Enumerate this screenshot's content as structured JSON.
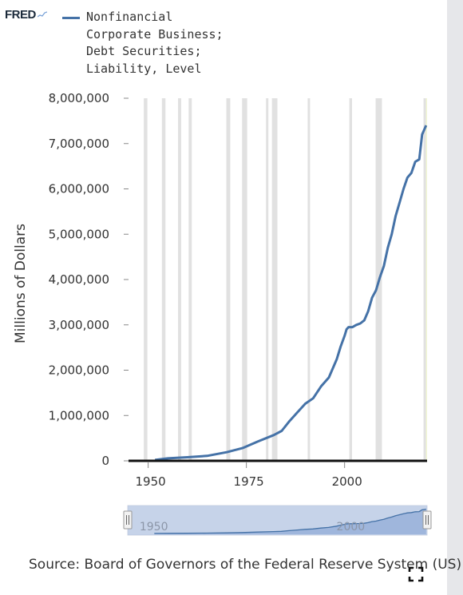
{
  "brand": {
    "name": "FRED"
  },
  "legend": {
    "label": "Nonfinancial\nCorporate Business;\nDebt Securities;\nLiability, Level"
  },
  "source_text": "Source: Board of Governors of the Federal Reserve System (US)",
  "colors": {
    "series": "#4572a7",
    "recession": "#e1e1e1",
    "navigator_fill": "#b7c7e3",
    "navigator_line": "#4572a7",
    "forecast_band": "#f2f7d4"
  },
  "icons": {
    "logo_spark": "sparkline-icon",
    "fullscreen": "fullscreen-icon"
  },
  "navigator": {
    "tick_labels": [
      "1950",
      "2000"
    ]
  },
  "chart_data": {
    "type": "line",
    "title": "",
    "ylabel": "Millions of Dollars",
    "xlabel": "",
    "xlim": [
      1945,
      2021
    ],
    "ylim": [
      0,
      8000000
    ],
    "x_ticks": [
      1950,
      1975,
      2000
    ],
    "y_ticks": [
      0,
      1000000,
      2000000,
      3000000,
      4000000,
      5000000,
      6000000,
      7000000,
      8000000
    ],
    "y_tick_labels": [
      "0",
      "1,000,000",
      "2,000,000",
      "3,000,000",
      "4,000,000",
      "5,000,000",
      "6,000,000",
      "7,000,000",
      "8,000,000"
    ],
    "x_tick_labels": [
      "1950",
      "1975",
      "2000"
    ],
    "grid": false,
    "legend_position": "top",
    "recessions": [
      [
        1948.9,
        1949.8
      ],
      [
        1953.5,
        1954.4
      ],
      [
        1957.6,
        1958.4
      ],
      [
        1960.3,
        1961.1
      ],
      [
        1969.9,
        1970.9
      ],
      [
        1973.9,
        1975.2
      ],
      [
        1980.0,
        1980.6
      ],
      [
        1981.5,
        1982.9
      ],
      [
        1990.6,
        1991.2
      ],
      [
        2001.2,
        2001.9
      ],
      [
        2007.9,
        2009.5
      ],
      [
        2020.1,
        2020.4
      ]
    ],
    "series": [
      {
        "name": "Nonfinancial Corporate Business; Debt Securities; Liability, Level",
        "x": [
          1951.75,
          1955,
          1960,
          1965,
          1970,
          1974,
          1978,
          1982,
          1984,
          1986,
          1988,
          1990,
          1992,
          1994,
          1996,
          1998,
          1999,
          2000,
          2000.5,
          2001,
          2002,
          2003,
          2004,
          2005,
          2006,
          2007,
          2008,
          2009,
          2010,
          2011,
          2012,
          2013,
          2014,
          2015,
          2016,
          2017,
          2018,
          2019,
          2019.75,
          2020.25,
          2020.75
        ],
        "values": [
          20000,
          55000,
          80000,
          110000,
          190000,
          280000,
          430000,
          570000,
          660000,
          880000,
          1070000,
          1260000,
          1380000,
          1640000,
          1840000,
          2240000,
          2520000,
          2760000,
          2900000,
          2950000,
          2950000,
          3000000,
          3030000,
          3100000,
          3300000,
          3600000,
          3760000,
          4050000,
          4300000,
          4700000,
          5000000,
          5400000,
          5700000,
          6000000,
          6250000,
          6350000,
          6600000,
          6650000,
          7200000,
          7300000,
          7400000
        ]
      }
    ]
  }
}
